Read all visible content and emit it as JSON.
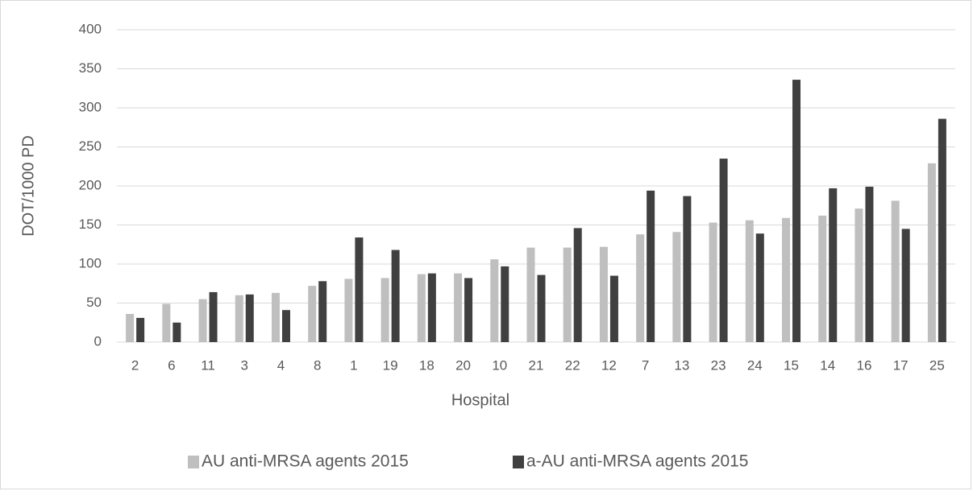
{
  "chart_data": {
    "type": "bar",
    "x_label": "Hospital",
    "y_label": "DOT/1000 PD",
    "categories": [
      "2",
      "6",
      "11",
      "3",
      "4",
      "8",
      "1",
      "19",
      "18",
      "20",
      "10",
      "21",
      "22",
      "12",
      "7",
      "13",
      "23",
      "24",
      "15",
      "14",
      "16",
      "17",
      "25"
    ],
    "series": [
      {
        "name": "AU anti-MRSA agents 2015",
        "color": "#bfbfbf",
        "values": [
          36,
          49,
          55,
          60,
          63,
          72,
          81,
          82,
          87,
          88,
          106,
          121,
          121,
          122,
          138,
          141,
          153,
          156,
          159,
          162,
          171,
          181,
          229
        ]
      },
      {
        "name": "a-AU anti-MRSA agents 2015",
        "color": "#404040",
        "values": [
          31,
          25,
          64,
          61,
          41,
          78,
          134,
          118,
          88,
          82,
          97,
          86,
          146,
          85,
          194,
          187,
          235,
          139,
          336,
          197,
          199,
          145,
          286
        ]
      }
    ],
    "ylim": [
      0,
      400
    ],
    "yticks": [
      0,
      50,
      100,
      150,
      200,
      250,
      300,
      350,
      400
    ],
    "grid": true,
    "legend": "bottom"
  }
}
